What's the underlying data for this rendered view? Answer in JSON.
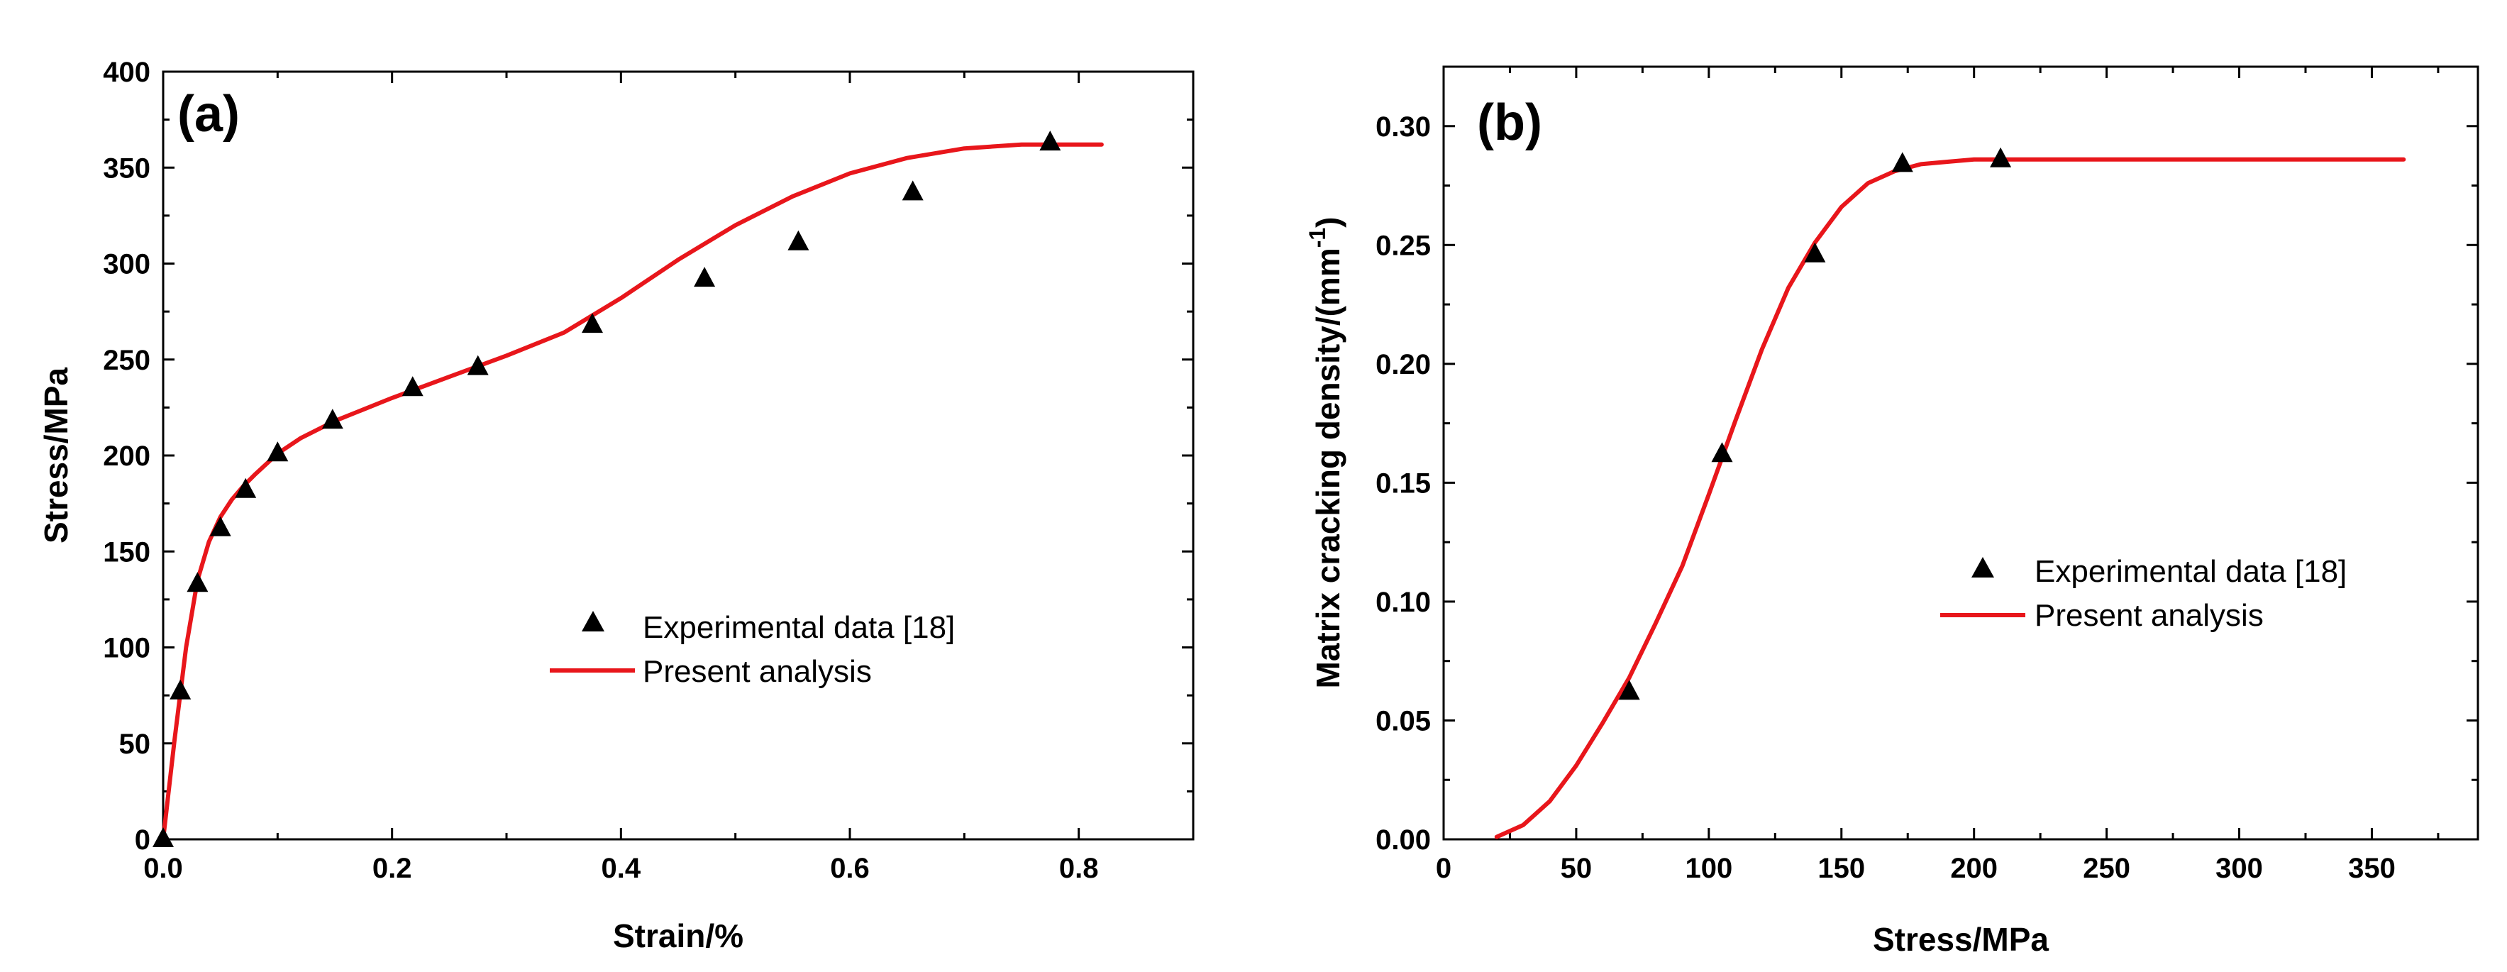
{
  "chart_data": [
    {
      "type": "line",
      "panel_label": "(a)",
      "xlabel": "Strain/%",
      "ylabel": "Stress/MPa",
      "xlim": [
        0,
        0.9
      ],
      "ylim": [
        0,
        400
      ],
      "x_ticks": [
        0.0,
        0.2,
        0.4,
        0.6,
        0.8
      ],
      "x_tick_labels": [
        "0.0",
        "0.2",
        "0.4",
        "0.6",
        "0.8"
      ],
      "y_ticks": [
        0,
        50,
        100,
        150,
        200,
        250,
        300,
        350,
        400
      ],
      "y_tick_labels": [
        "0",
        "50",
        "100",
        "150",
        "200",
        "250",
        "300",
        "350",
        "400"
      ],
      "grid": false,
      "legend_position": "center-right",
      "series": [
        {
          "name": "Experimental data [18]",
          "kind": "scatter",
          "marker": "triangle",
          "color": "#000000",
          "x": [
            0.0,
            0.015,
            0.03,
            0.05,
            0.072,
            0.1,
            0.148,
            0.218,
            0.275,
            0.375,
            0.473,
            0.555,
            0.655,
            0.775
          ],
          "y": [
            0,
            77,
            133,
            162,
            182,
            201,
            218,
            235,
            246,
            268,
            292,
            311,
            337,
            363
          ]
        },
        {
          "name": "Present analysis",
          "kind": "line",
          "color": "#e8161b",
          "x": [
            0.0,
            0.01,
            0.02,
            0.03,
            0.04,
            0.05,
            0.06,
            0.07,
            0.08,
            0.1,
            0.12,
            0.15,
            0.2,
            0.25,
            0.3,
            0.35,
            0.4,
            0.45,
            0.5,
            0.55,
            0.6,
            0.65,
            0.7,
            0.75,
            0.78,
            0.82
          ],
          "y": [
            0,
            52,
            100,
            135,
            155,
            168,
            177,
            184,
            190,
            201,
            209,
            218,
            230,
            241,
            252,
            264,
            282,
            302,
            320,
            335,
            347,
            355,
            360,
            362,
            362,
            362
          ]
        }
      ]
    },
    {
      "type": "line",
      "panel_label": "(b)",
      "xlabel": "Stress/MPa",
      "ylabel": "Matrix cracking density/(mm",
      "ylabel_superscript": "-1",
      "ylabel_suffix": ")",
      "xlim": [
        0,
        390
      ],
      "ylim": [
        0,
        0.325
      ],
      "x_ticks": [
        0,
        50,
        100,
        150,
        200,
        250,
        300,
        350
      ],
      "x_tick_labels": [
        "0",
        "50",
        "100",
        "150",
        "200",
        "250",
        "300",
        "350"
      ],
      "y_ticks": [
        0,
        0.05,
        0.1,
        0.15,
        0.2,
        0.25,
        0.3
      ],
      "y_tick_labels": [
        "0.00",
        "0.05",
        "0.10",
        "0.15",
        "0.20",
        "0.25",
        "0.30"
      ],
      "grid": false,
      "legend_position": "center-right",
      "series": [
        {
          "name": "Experimental data [18]",
          "kind": "scatter",
          "marker": "triangle",
          "color": "#000000",
          "x": [
            70,
            105,
            140,
            173,
            210
          ],
          "y": [
            0.062,
            0.162,
            0.246,
            0.284,
            0.286
          ]
        },
        {
          "name": "Present analysis",
          "kind": "line",
          "color": "#e8161b",
          "x": [
            20,
            30,
            40,
            50,
            60,
            70,
            80,
            90,
            100,
            110,
            120,
            130,
            140,
            150,
            160,
            170,
            180,
            190,
            200,
            220,
            250,
            300,
            362
          ],
          "y": [
            0.001,
            0.006,
            0.016,
            0.031,
            0.049,
            0.068,
            0.091,
            0.115,
            0.145,
            0.176,
            0.206,
            0.232,
            0.251,
            0.266,
            0.276,
            0.281,
            0.284,
            0.285,
            0.286,
            0.286,
            0.286,
            0.286,
            0.286
          ]
        }
      ]
    }
  ]
}
